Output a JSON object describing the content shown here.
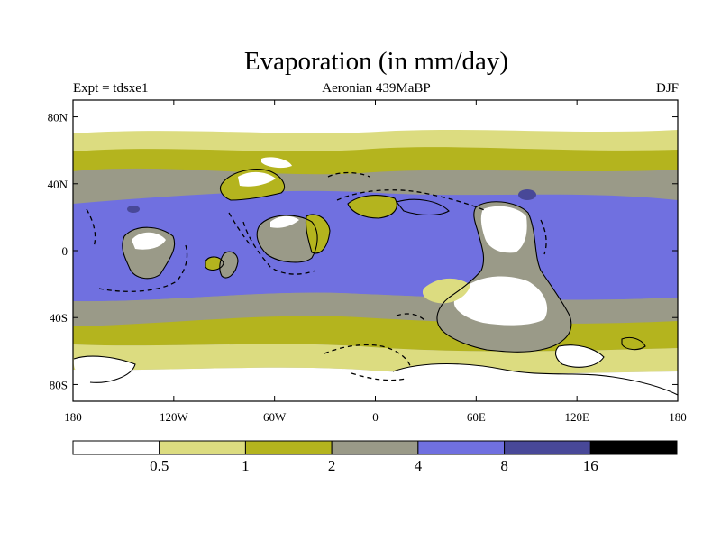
{
  "title": "Evaporation (in mm/day)",
  "subtitle_left": "Expt = tdsxe1",
  "subtitle_center": "Aeronian 439MaBP",
  "subtitle_right": "DJF",
  "map": {
    "lon_range": [
      -180,
      180
    ],
    "lat_range": [
      -90,
      90
    ],
    "x_ticks": [
      {
        "lon": -180,
        "label": "180"
      },
      {
        "lon": -120,
        "label": "120W"
      },
      {
        "lon": -60,
        "label": "60W"
      },
      {
        "lon": 0,
        "label": "0"
      },
      {
        "lon": 60,
        "label": "60E"
      },
      {
        "lon": 120,
        "label": "120E"
      },
      {
        "lon": 180,
        "label": "180"
      }
    ],
    "y_ticks": [
      {
        "lat": 80,
        "label": "80N"
      },
      {
        "lat": 40,
        "label": "40N"
      },
      {
        "lat": 0,
        "label": "0"
      },
      {
        "lat": -40,
        "label": "40S"
      },
      {
        "lat": -80,
        "label": "80S"
      }
    ]
  },
  "colorbar": {
    "colors": [
      "#ffffff",
      "#dcdc80",
      "#b4b41e",
      "#9a9a88",
      "#7070e0",
      "#484898",
      "#000000"
    ],
    "labels": [
      "0.5",
      "1",
      "2",
      "4",
      "8",
      "16"
    ]
  }
}
